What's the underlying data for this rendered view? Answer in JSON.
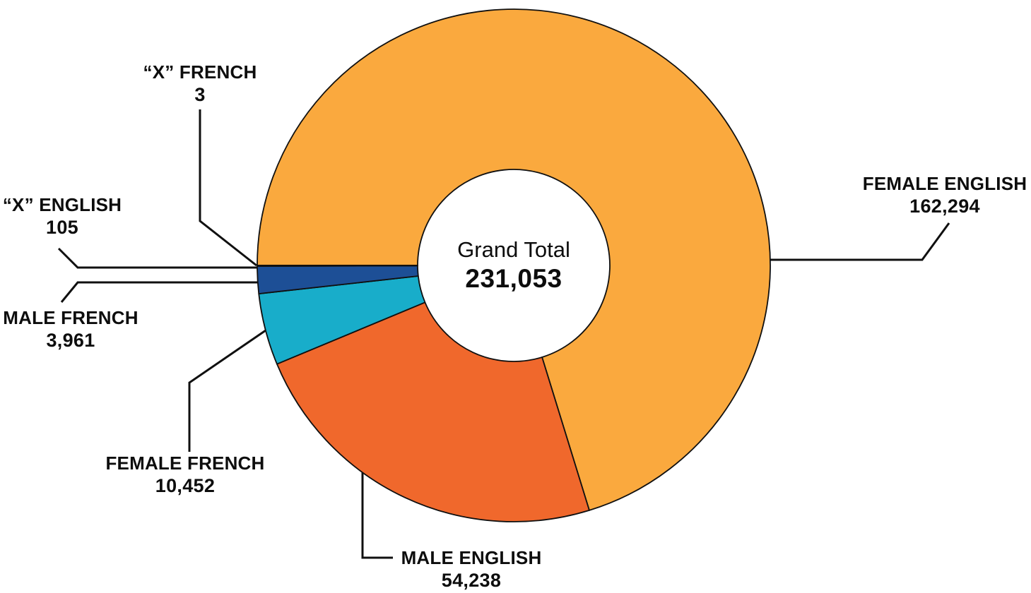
{
  "chart_data": {
    "type": "pie",
    "subtype": "donut",
    "title": "",
    "legend_position": "none",
    "labels_outside": true,
    "start_angle_deg": 270,
    "direction": "clockwise",
    "stroke_color": "#101010",
    "leader_line_color": "#101010",
    "text_color": "#0d0d0d",
    "center_label": {
      "title": "Grand Total",
      "value": "231,053",
      "total": 231053
    },
    "slices": [
      {
        "label": "FEMALE ENGLISH",
        "value": 162294,
        "display": "162,294",
        "color": "#FAA93E"
      },
      {
        "label": "MALE ENGLISH",
        "value": 54238,
        "display": "54,238",
        "color": "#F0682C"
      },
      {
        "label": "FEMALE FRENCH",
        "value": 10452,
        "display": "10,452",
        "color": "#18ADCA"
      },
      {
        "label": "MALE FRENCH",
        "value": 3961,
        "display": "3,961",
        "color": "#1D4F96"
      },
      {
        "label": "“X” ENGLISH",
        "value": 105,
        "display": "105",
        "color": "#1B2D5E"
      },
      {
        "label": "“X” FRENCH",
        "value": 3,
        "display": "3",
        "color": "#1B2D5E"
      }
    ]
  }
}
